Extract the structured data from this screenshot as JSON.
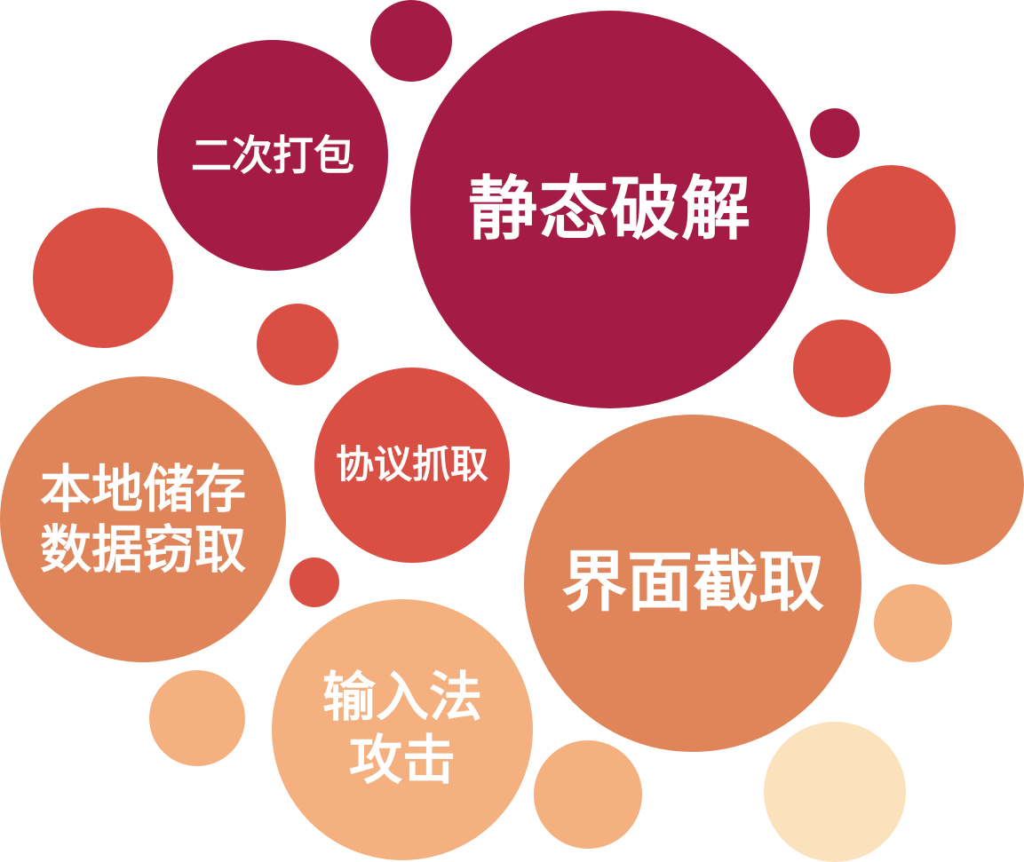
{
  "palette": {
    "crimson": "#a41c46",
    "red": "#d94f44",
    "orange": "#e0855a",
    "peach": "#f4b07f",
    "cream": "#fbe2bc",
    "text": "#ffffff"
  },
  "bubbles": {
    "secondary_packaging": {
      "label": "二次打包",
      "color": "crimson"
    },
    "static_cracking": {
      "label": "静态破解",
      "color": "crimson"
    },
    "protocol_capture": {
      "label": "协议抓取",
      "color": "red"
    },
    "local_storage_theft": {
      "label": "本地储存\n数据窃取",
      "color": "orange"
    },
    "ui_capture": {
      "label": "界面截取",
      "color": "orange"
    },
    "input_method_attack": {
      "label": "输入法\n攻击",
      "color": "peach"
    }
  },
  "decor": [
    {
      "id": "decor-1",
      "color": "crimson"
    },
    {
      "id": "decor-2",
      "color": "crimson"
    },
    {
      "id": "decor-3",
      "color": "red"
    },
    {
      "id": "decor-4",
      "color": "red"
    },
    {
      "id": "decor-5",
      "color": "red"
    },
    {
      "id": "decor-6",
      "color": "red"
    },
    {
      "id": "decor-7",
      "color": "orange"
    },
    {
      "id": "decor-8",
      "color": "red"
    },
    {
      "id": "decor-9",
      "color": "peach"
    },
    {
      "id": "decor-10",
      "color": "peach"
    },
    {
      "id": "decor-11",
      "color": "peach"
    },
    {
      "id": "decor-12",
      "color": "cream"
    }
  ]
}
